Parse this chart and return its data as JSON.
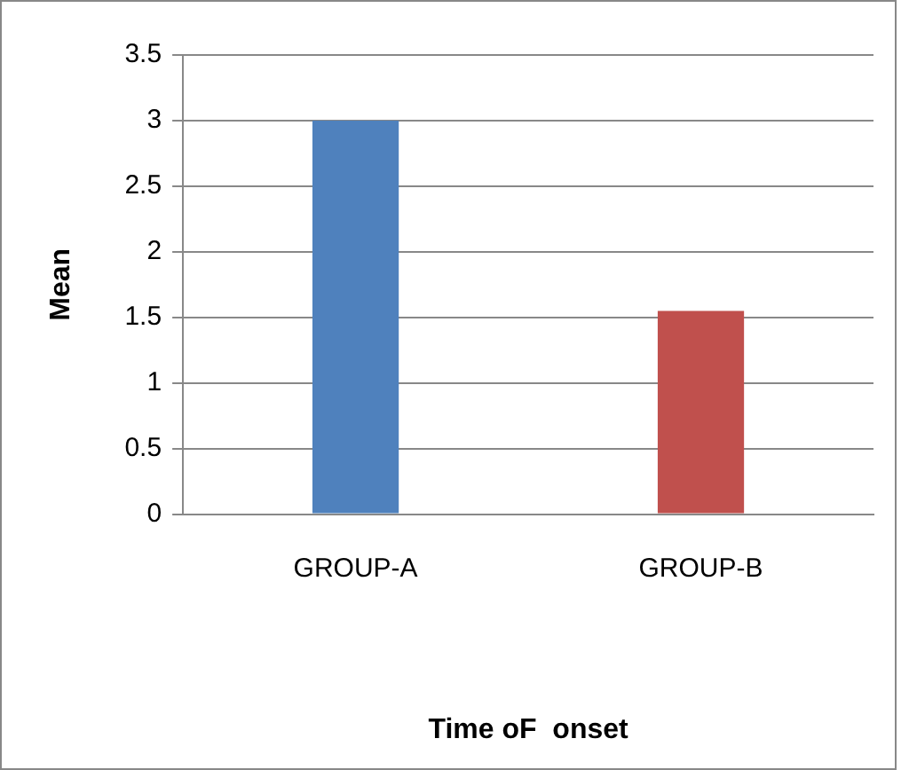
{
  "chart_data": {
    "type": "bar",
    "xlabel": "Time oF  onset",
    "ylabel": "Mean",
    "categories": [
      "GROUP-A",
      "GROUP-B"
    ],
    "values": [
      3.0,
      1.55
    ],
    "colors": [
      "#4f81bd",
      "#c0504d"
    ],
    "ylim": [
      0,
      3.5
    ],
    "yticks": [
      0,
      0.5,
      1,
      1.5,
      2,
      2.5,
      3,
      3.5
    ],
    "grid": "y",
    "legend": false
  }
}
